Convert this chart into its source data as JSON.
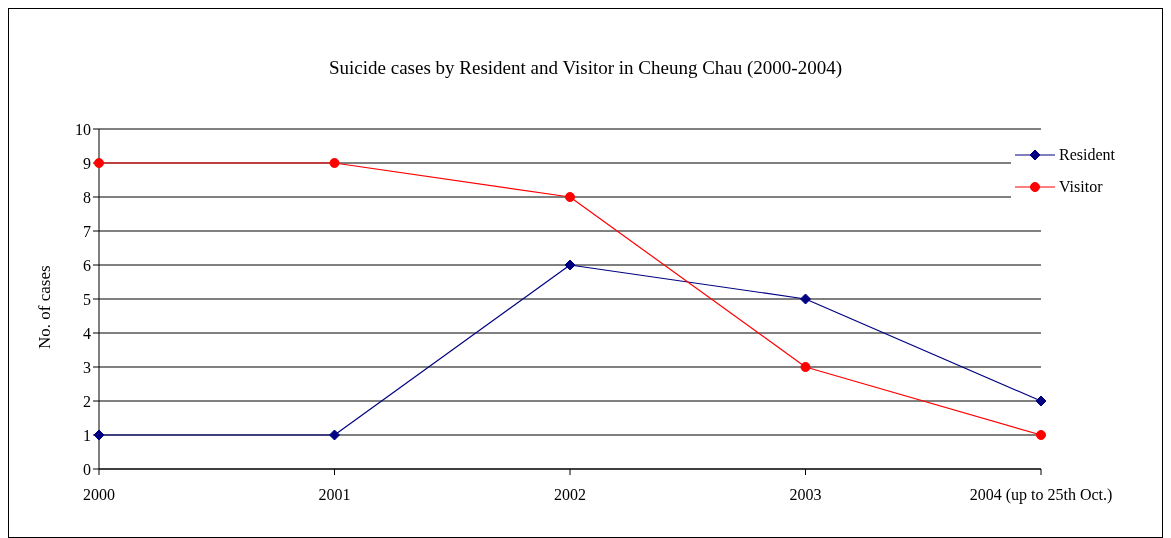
{
  "chart_data": {
    "type": "line",
    "title": "Suicide cases by Resident and Visitor in Cheung Chau (2000-2004)",
    "ylabel": "No. of cases",
    "categories": [
      "2000",
      "2001",
      "2002",
      "2003",
      "2004 (up to 25th Oct.)"
    ],
    "series": [
      {
        "name": "Resident",
        "color": "#000080",
        "marker": "diamond",
        "values": [
          1,
          1,
          6,
          5,
          2
        ]
      },
      {
        "name": "Visitor",
        "color": "#ff0000",
        "marker": "circle",
        "values": [
          9,
          9,
          8,
          3,
          1
        ]
      }
    ],
    "ylim": [
      0,
      10
    ],
    "yticks": [
      0,
      1,
      2,
      3,
      4,
      5,
      6,
      7,
      8,
      9,
      10
    ],
    "grid": "y",
    "legend": "top right",
    "line_style": "solid"
  }
}
